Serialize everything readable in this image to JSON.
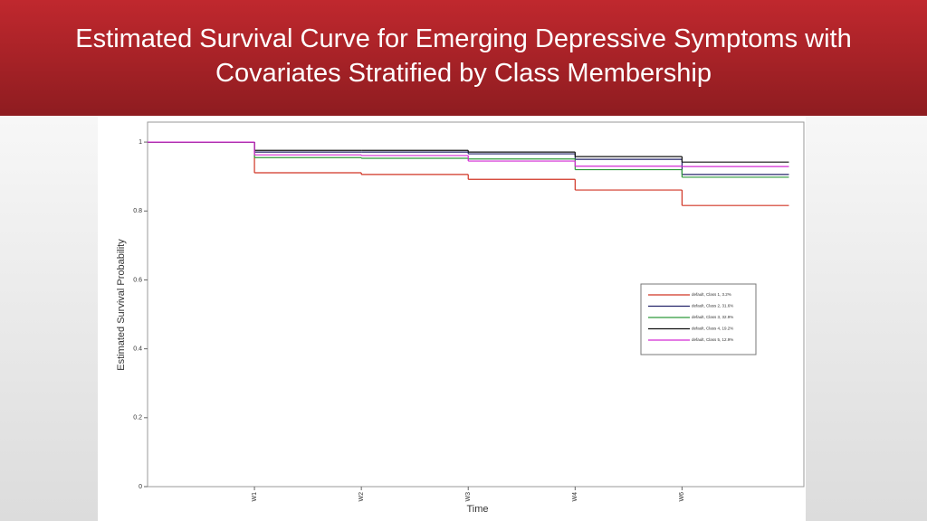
{
  "chart_data": {
    "type": "step",
    "title": "Estimated Survival Curve for Emerging Depressive Symptoms with Covariates Stratified by Class Membership",
    "x_label": "Time",
    "y_label": "Estimated Survival Probability",
    "x": [
      0,
      1,
      2,
      3,
      4,
      5,
      6
    ],
    "xlim": [
      0,
      6.14
    ],
    "xticks": [
      {
        "value": 1,
        "label": "W1"
      },
      {
        "value": 2,
        "label": "W2"
      },
      {
        "value": 3,
        "label": "W3"
      },
      {
        "value": 4,
        "label": "W4"
      },
      {
        "value": 5,
        "label": "W6"
      }
    ],
    "ylim": [
      0,
      1.058
    ],
    "yticks": [
      0,
      0.2,
      0.4,
      0.6,
      0.8,
      1
    ],
    "legend_position": "right",
    "series": [
      {
        "name": "default, Class 1, 3.2%",
        "color": "#d03424",
        "values": [
          1,
          0.911,
          0.906,
          0.892,
          0.861,
          0.816,
          0.816
        ]
      },
      {
        "name": "default, Class 2, 31.6%",
        "color": "#24246a",
        "values": [
          1,
          0.971,
          0.971,
          0.966,
          0.95,
          0.906,
          0.906
        ]
      },
      {
        "name": "default, Class 3, 32.9%",
        "color": "#2f9a3a",
        "values": [
          1,
          0.955,
          0.953,
          0.951,
          0.92,
          0.898,
          0.898
        ]
      },
      {
        "name": "default, Class 4, 19.2%",
        "color": "#111111",
        "values": [
          1,
          0.976,
          0.976,
          0.971,
          0.958,
          0.942,
          0.942
        ]
      },
      {
        "name": "default, Class 5, 12.9%",
        "color": "#d42ad4",
        "values": [
          1,
          0.963,
          0.961,
          0.945,
          0.93,
          0.929,
          0.929
        ]
      }
    ]
  }
}
